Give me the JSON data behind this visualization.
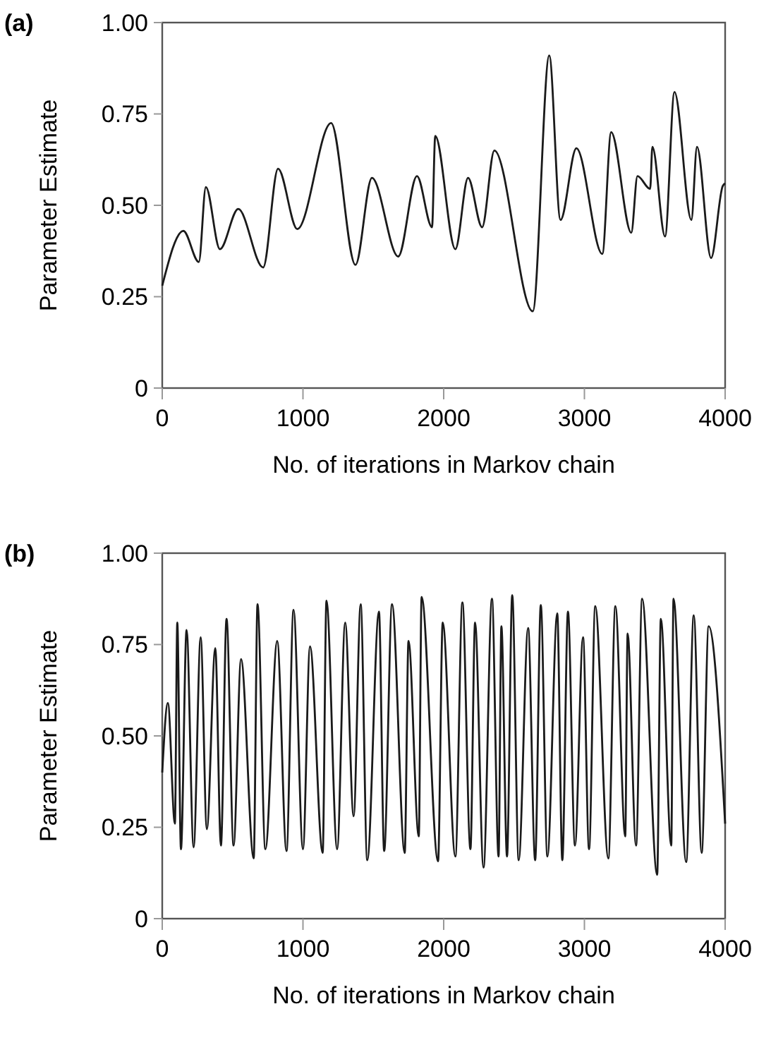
{
  "chart_data": [
    {
      "type": "line",
      "title": "(a)",
      "xlabel": "No. of iterations in Markov chain",
      "ylabel": "Parameter Estimate",
      "xlim": [
        0,
        4000
      ],
      "ylim": [
        0,
        1
      ],
      "xticks": [
        0,
        1000,
        2000,
        3000,
        4000
      ],
      "yticks": [
        0,
        {
          "value": 0.25,
          "label": "0.25"
        },
        {
          "value": 0.5,
          "label": "0.50"
        },
        {
          "value": 0.75,
          "label": "0.75"
        },
        {
          "value": 1,
          "label": "1.00"
        }
      ],
      "grid": false,
      "marker": "none",
      "line_style": "solid",
      "series": [
        {
          "color": "#1a1a1a",
          "x": [
            0,
            150,
            260,
            310,
            410,
            540,
            717,
            823,
            960,
            1200,
            1373,
            1490,
            1677,
            1810,
            1917,
            1940,
            2083,
            2173,
            2273,
            2360,
            2633,
            2750,
            2830,
            2943,
            3127,
            3190,
            3333,
            3377,
            3467,
            3483,
            3573,
            3640,
            3760,
            3800,
            3900,
            3983,
            4000
          ],
          "values": [
            0.28,
            0.43,
            0.345,
            0.55,
            0.38,
            0.49,
            0.33,
            0.6,
            0.435,
            0.725,
            0.337,
            0.575,
            0.36,
            0.58,
            0.44,
            0.69,
            0.38,
            0.575,
            0.44,
            0.65,
            0.21,
            0.91,
            0.46,
            0.656,
            0.367,
            0.7,
            0.425,
            0.58,
            0.545,
            0.66,
            0.415,
            0.81,
            0.46,
            0.66,
            0.356,
            0.553,
            0.56
          ]
        }
      ]
    },
    {
      "type": "line",
      "title": "(b)",
      "xlabel": "No. of iterations in Markov chain",
      "ylabel": "Parameter Estimate",
      "xlim": [
        0,
        4000
      ],
      "ylim": [
        0,
        1
      ],
      "xticks": [
        0,
        1000,
        2000,
        3000,
        4000
      ],
      "yticks": [
        0,
        {
          "value": 0.25,
          "label": "0.25"
        },
        {
          "value": 0.5,
          "label": "0.50"
        },
        {
          "value": 0.75,
          "label": "0.75"
        },
        {
          "value": 1,
          "label": "1.00"
        }
      ],
      "grid": false,
      "marker": "none",
      "line_style": "solid",
      "series": [
        {
          "color": "#1a1a1a",
          "x": [
            0,
            40,
            90,
            107,
            133,
            173,
            223,
            273,
            317,
            377,
            417,
            457,
            507,
            560,
            650,
            677,
            733,
            817,
            883,
            933,
            1000,
            1050,
            1140,
            1167,
            1243,
            1300,
            1360,
            1410,
            1457,
            1540,
            1577,
            1633,
            1723,
            1750,
            1823,
            1843,
            1960,
            1993,
            2083,
            2133,
            2190,
            2223,
            2283,
            2343,
            2390,
            2410,
            2450,
            2487,
            2533,
            2600,
            2650,
            2690,
            2737,
            2807,
            2843,
            2883,
            2933,
            2990,
            3033,
            3077,
            3170,
            3220,
            3290,
            3307,
            3367,
            3410,
            3517,
            3543,
            3617,
            3633,
            3723,
            3777,
            3833,
            3883,
            4000
          ],
          "values": [
            0.4,
            0.59,
            0.26,
            0.81,
            0.19,
            0.79,
            0.195,
            0.77,
            0.245,
            0.74,
            0.2,
            0.82,
            0.2,
            0.71,
            0.165,
            0.86,
            0.19,
            0.76,
            0.185,
            0.845,
            0.19,
            0.745,
            0.18,
            0.87,
            0.19,
            0.81,
            0.28,
            0.86,
            0.16,
            0.84,
            0.185,
            0.86,
            0.18,
            0.76,
            0.225,
            0.88,
            0.157,
            0.81,
            0.17,
            0.865,
            0.19,
            0.81,
            0.14,
            0.875,
            0.17,
            0.8,
            0.17,
            0.885,
            0.16,
            0.795,
            0.16,
            0.858,
            0.17,
            0.835,
            0.16,
            0.84,
            0.2,
            0.77,
            0.19,
            0.855,
            0.165,
            0.855,
            0.225,
            0.78,
            0.2,
            0.875,
            0.12,
            0.82,
            0.2,
            0.875,
            0.155,
            0.83,
            0.18,
            0.8,
            0.26
          ]
        }
      ]
    }
  ]
}
